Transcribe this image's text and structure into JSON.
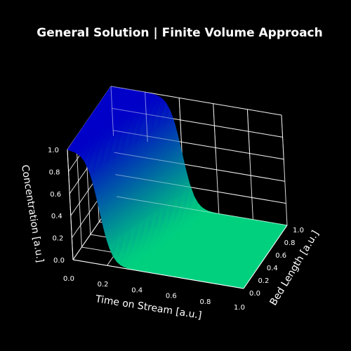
{
  "chart_data": {
    "type": "surface3d",
    "title": "General Solution | Finite Volume Approach",
    "xlabel": "Time on Stream [a.u.]",
    "ylabel": "Bed Length [a.u.]",
    "zlabel": "Concentration [a.u.]",
    "xlim": [
      0,
      1
    ],
    "ylim": [
      0,
      1
    ],
    "zlim": [
      0,
      1
    ],
    "x_ticks": [
      "0.0",
      "0.2",
      "0.4",
      "0.6",
      "0.8",
      "1.0"
    ],
    "y_ticks": [
      "0.0",
      "0.2",
      "0.4",
      "0.6",
      "0.8",
      "1.0"
    ],
    "z_ticks": [
      "0.0",
      "0.2",
      "0.4",
      "0.6",
      "0.8",
      "1.0"
    ],
    "grid": true,
    "colormap": "winter",
    "colors": {
      "background": "#000000",
      "low": "#00d17f",
      "high": "#0000c8",
      "grid": "#ffffff"
    },
    "surface": {
      "description_points": [
        {
          "time": 0.0,
          "bed_length_0": 1.0
        },
        {
          "time": 0.2,
          "bed_length_0": 1.0
        },
        {
          "time": 0.4,
          "bed_length_1": 0.0
        }
      ],
      "front_start": {
        "time": 0.17,
        "bed_length": 0.0
      },
      "front_end": {
        "time": 0.4,
        "bed_length": 1.0
      },
      "front_width": 0.03,
      "front_span": 0.04
    }
  }
}
